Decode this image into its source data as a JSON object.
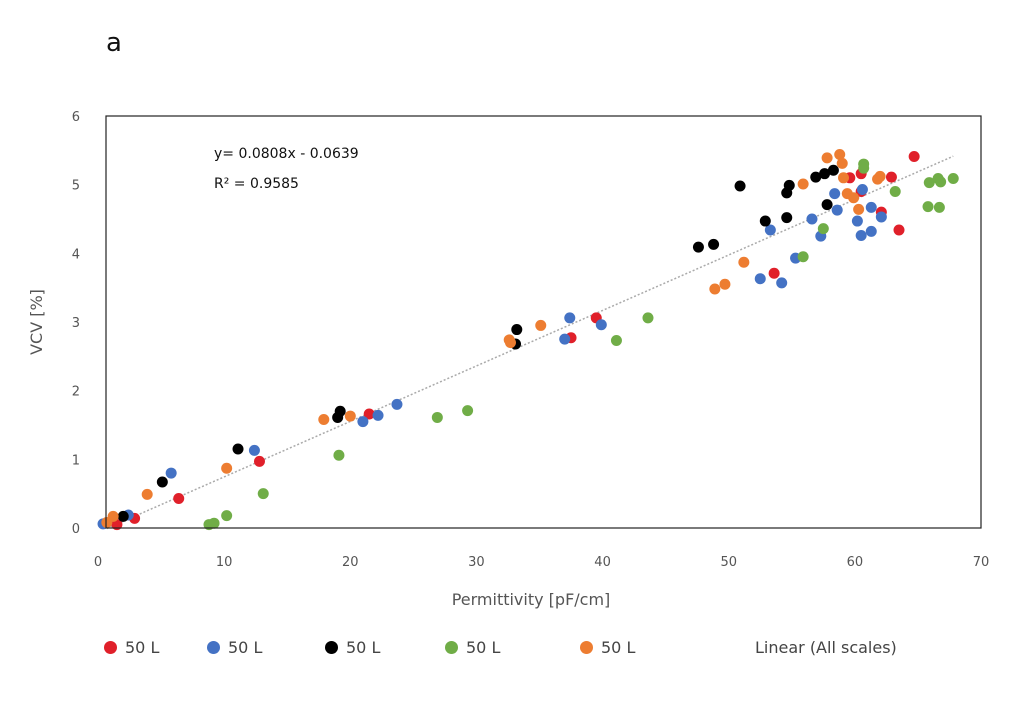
{
  "panel_label": "a",
  "chart_data": {
    "type": "scatter",
    "title": "",
    "xlabel": "Permittivity [pF/cm]",
    "ylabel": "VCV [%]",
    "xlim": [
      0,
      70
    ],
    "ylim": [
      0,
      6
    ],
    "x_ticks": [
      0,
      10,
      20,
      30,
      40,
      50,
      60,
      70
    ],
    "y_ticks": [
      0,
      1,
      2,
      3,
      4,
      5,
      6
    ],
    "grid": false,
    "legend_position": "bottom",
    "equation": "y= 0.0808x - 0.0639",
    "r_squared": "R² = 0.9585",
    "trendline": {
      "name": "Linear (All scales)",
      "slope": 0.0808,
      "intercept": -0.0639,
      "x_range": [
        0.7,
        67.8
      ],
      "color": "#aaaaaa"
    },
    "series": [
      {
        "name": "50 L",
        "color": "#e0202a",
        "points": [
          [
            1.5,
            0.05
          ],
          [
            2.9,
            0.14
          ],
          [
            6.4,
            0.43
          ],
          [
            12.8,
            0.97
          ],
          [
            21.5,
            1.66
          ],
          [
            37.5,
            2.77
          ],
          [
            39.5,
            3.06
          ],
          [
            53.6,
            3.71
          ],
          [
            59.6,
            5.1
          ],
          [
            60.5,
            4.9
          ],
          [
            60.5,
            5.16
          ],
          [
            62.1,
            4.6
          ],
          [
            62.9,
            5.11
          ],
          [
            63.5,
            4.34
          ],
          [
            64.7,
            5.41
          ]
        ]
      },
      {
        "name": "50 L",
        "color": "#4472c4",
        "points": [
          [
            0.4,
            0.06
          ],
          [
            2.4,
            0.19
          ],
          [
            5.8,
            0.8
          ],
          [
            12.4,
            1.13
          ],
          [
            21,
            1.55
          ],
          [
            22.2,
            1.64
          ],
          [
            23.7,
            1.8
          ],
          [
            37,
            2.75
          ],
          [
            37.4,
            3.06
          ],
          [
            39.9,
            2.96
          ],
          [
            52.5,
            3.63
          ],
          [
            53.3,
            4.34
          ],
          [
            54.2,
            3.57
          ],
          [
            55.3,
            3.93
          ],
          [
            56.6,
            4.5
          ],
          [
            57.3,
            4.25
          ],
          [
            58.4,
            4.87
          ],
          [
            58.6,
            4.63
          ],
          [
            60.2,
            4.47
          ],
          [
            60.5,
            4.26
          ],
          [
            61.3,
            4.32
          ],
          [
            61.3,
            4.67
          ],
          [
            62.1,
            4.53
          ],
          [
            60.6,
            4.93
          ]
        ]
      },
      {
        "name": "50 L",
        "color": "#000000",
        "points": [
          [
            2,
            0.17
          ],
          [
            5.1,
            0.67
          ],
          [
            11.1,
            1.15
          ],
          [
            19,
            1.61
          ],
          [
            19.2,
            1.7
          ],
          [
            33.1,
            2.68
          ],
          [
            33.2,
            2.89
          ],
          [
            47.6,
            4.09
          ],
          [
            48.8,
            4.13
          ],
          [
            50.9,
            4.98
          ],
          [
            52.9,
            4.47
          ],
          [
            54.6,
            4.52
          ],
          [
            54.6,
            4.88
          ],
          [
            54.8,
            4.99
          ],
          [
            56.9,
            5.11
          ],
          [
            57.6,
            5.16
          ],
          [
            58.3,
            5.21
          ],
          [
            57.8,
            4.71
          ]
        ]
      },
      {
        "name": "50 L",
        "color": "#70ad47",
        "points": [
          [
            8.8,
            0.05
          ],
          [
            9.2,
            0.07
          ],
          [
            10.2,
            0.18
          ],
          [
            13.1,
            0.5
          ],
          [
            19.1,
            1.06
          ],
          [
            26.9,
            1.61
          ],
          [
            29.3,
            1.71
          ],
          [
            41.1,
            2.73
          ],
          [
            43.6,
            3.06
          ],
          [
            55.9,
            3.95
          ],
          [
            57.5,
            4.36
          ],
          [
            60.7,
            5.24
          ],
          [
            60.7,
            5.3
          ],
          [
            63.2,
            4.9
          ],
          [
            65.8,
            4.68
          ],
          [
            65.9,
            5.03
          ],
          [
            66.6,
            5.09
          ],
          [
            66.7,
            4.67
          ],
          [
            66.8,
            5.04
          ],
          [
            67.8,
            5.09
          ]
        ]
      },
      {
        "name": "50 L",
        "color": "#ed7d31",
        "points": [
          [
            0.7,
            0.08
          ],
          [
            1.2,
            0.17
          ],
          [
            3.9,
            0.49
          ],
          [
            10.2,
            0.87
          ],
          [
            17.9,
            1.58
          ],
          [
            20,
            1.63
          ],
          [
            32.6,
            2.74
          ],
          [
            32.7,
            2.7
          ],
          [
            35.1,
            2.95
          ],
          [
            48.9,
            3.48
          ],
          [
            49.7,
            3.55
          ],
          [
            51.2,
            3.87
          ],
          [
            55.9,
            5.01
          ],
          [
            57.8,
            5.39
          ],
          [
            58.8,
            5.44
          ],
          [
            59,
            5.31
          ],
          [
            59.1,
            5.1
          ],
          [
            59.4,
            4.87
          ],
          [
            59.9,
            4.81
          ],
          [
            60.3,
            4.64
          ],
          [
            62,
            5.12
          ],
          [
            61.8,
            5.08
          ]
        ]
      }
    ]
  }
}
